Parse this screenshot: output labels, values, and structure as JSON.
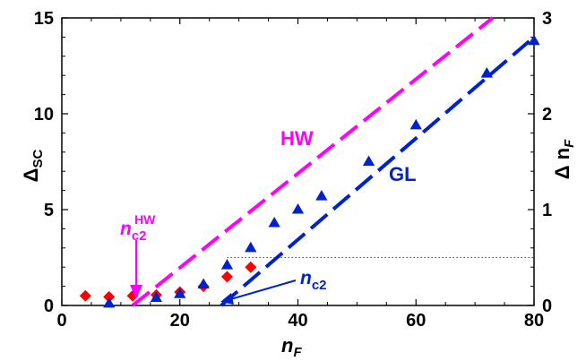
{
  "chart_data": {
    "type": "scatter",
    "x_axis": {
      "label": "n",
      "label_sub": "F",
      "range": [
        0,
        80
      ],
      "ticks": [
        "0",
        "20",
        "40",
        "60",
        "80"
      ]
    },
    "y_left": {
      "label": "Δ",
      "label_sub": "SC",
      "range": [
        0,
        15
      ],
      "ticks": [
        "0",
        "5",
        "10",
        "15"
      ]
    },
    "y_right": {
      "label": "Δ n",
      "label_sub": "F",
      "range": [
        0,
        3
      ],
      "ticks": [
        "0",
        "1",
        "2",
        "3"
      ]
    },
    "series": [
      {
        "marker": "diamond",
        "color": "#ff0000",
        "axis": "left",
        "points": [
          [
            4,
            0.5
          ],
          [
            8,
            0.45
          ],
          [
            12,
            0.5
          ],
          [
            16,
            0.55
          ],
          [
            20,
            0.7
          ],
          [
            24,
            1.0
          ],
          [
            28,
            1.5
          ],
          [
            32,
            2.0
          ]
        ]
      },
      {
        "marker": "triangle",
        "color": "#0022cc",
        "axis": "left",
        "points": [
          [
            8,
            0.1
          ],
          [
            16,
            0.4
          ],
          [
            20,
            0.6
          ],
          [
            24,
            1.1
          ],
          [
            28,
            2.1
          ],
          [
            32,
            3.0
          ],
          [
            36,
            4.3
          ],
          [
            40,
            5.0
          ],
          [
            44,
            5.7
          ],
          [
            52,
            7.5
          ],
          [
            60,
            9.4
          ],
          [
            72,
            12.1
          ],
          [
            80,
            13.8
          ]
        ]
      }
    ],
    "lines": [
      {
        "name": "HW",
        "color": "#ff00ff",
        "style": "dashed",
        "points": [
          [
            12,
            0
          ],
          [
            73,
            15
          ]
        ]
      },
      {
        "name": "GL",
        "color": "#0022cc",
        "style": "dashed",
        "points": [
          [
            27,
            0
          ],
          [
            80,
            14
          ]
        ]
      }
    ],
    "reference_line": {
      "color": "#ff0000",
      "style": "dotted",
      "y": 2.5,
      "x_range": [
        28,
        80
      ]
    },
    "annotations": [
      {
        "text": "n",
        "sub": "c2",
        "sup": "HW",
        "color": "#ff00ff",
        "arrow_to": [
          12.5,
          0.2
        ]
      },
      {
        "text": "n",
        "sub": "c2",
        "color": "#0022cc",
        "arrow_to": [
          27,
          0.2
        ]
      },
      {
        "text": "HW",
        "color": "#ff00ff"
      },
      {
        "text": "GL",
        "color": "#0022cc"
      }
    ]
  }
}
